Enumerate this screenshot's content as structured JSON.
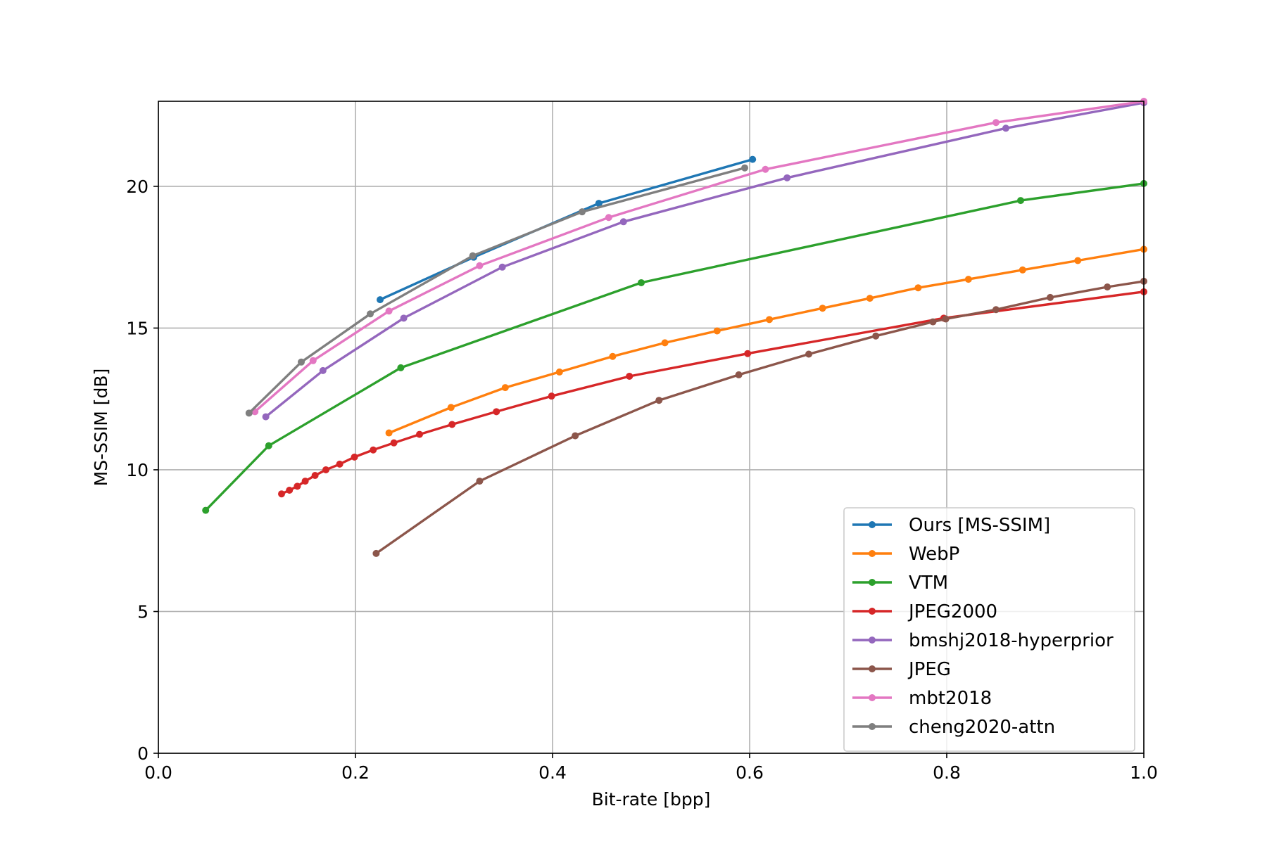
{
  "chart_data": {
    "type": "line",
    "title": "",
    "xlabel": "Bit-rate [bpp]",
    "ylabel": "MS-SSIM [dB]",
    "xlim": [
      0.0,
      1.0
    ],
    "ylim": [
      0,
      23
    ],
    "xticks": [
      0.0,
      0.2,
      0.4,
      0.6,
      0.8,
      1.0
    ],
    "xtick_labels": [
      "0.0",
      "0.2",
      "0.4",
      "0.6",
      "0.8",
      "1.0"
    ],
    "yticks": [
      0,
      5,
      10,
      15,
      20
    ],
    "ytick_labels": [
      "0",
      "5",
      "10",
      "15",
      "20"
    ],
    "grid": true,
    "legend_position": "bottom-right",
    "series": [
      {
        "name": "Ours [MS-SSIM]",
        "color": "#1f77b4",
        "x": [
          0.225,
          0.32,
          0.447,
          0.603
        ],
        "y": [
          16.0,
          17.5,
          19.4,
          20.95
        ]
      },
      {
        "name": "WebP",
        "color": "#ff7f0e",
        "x": [
          0.234,
          0.297,
          0.352,
          0.407,
          0.461,
          0.514,
          0.567,
          0.62,
          0.674,
          0.722,
          0.771,
          0.822,
          0.877,
          0.933,
          1.0
        ],
        "y": [
          11.3,
          12.2,
          12.9,
          13.45,
          14.0,
          14.48,
          14.9,
          15.3,
          15.7,
          16.05,
          16.42,
          16.72,
          17.05,
          17.38,
          17.78
        ]
      },
      {
        "name": "VTM",
        "color": "#2ca02c",
        "x": [
          0.048,
          0.112,
          0.246,
          0.49,
          0.875,
          1.0
        ],
        "y": [
          8.57,
          10.85,
          13.6,
          16.6,
          19.5,
          20.1
        ]
      },
      {
        "name": "JPEG2000",
        "color": "#d62728",
        "x": [
          0.125,
          0.133,
          0.141,
          0.149,
          0.159,
          0.17,
          0.184,
          0.199,
          0.218,
          0.239,
          0.265,
          0.298,
          0.343,
          0.399,
          0.478,
          0.598,
          0.797,
          1.0
        ],
        "y": [
          9.15,
          9.28,
          9.42,
          9.6,
          9.8,
          10.0,
          10.2,
          10.45,
          10.7,
          10.95,
          11.25,
          11.6,
          12.05,
          12.6,
          13.3,
          14.1,
          15.35,
          16.28
        ]
      },
      {
        "name": "bmshj2018-hyperprior",
        "color": "#9467bd",
        "x": [
          0.109,
          0.167,
          0.249,
          0.349,
          0.472,
          0.638,
          0.86,
          1.0
        ],
        "y": [
          11.87,
          13.5,
          15.35,
          17.15,
          18.75,
          20.3,
          22.05,
          22.95
        ]
      },
      {
        "name": "JPEG",
        "color": "#8c564b",
        "x": [
          0.221,
          0.326,
          0.423,
          0.508,
          0.589,
          0.66,
          0.728,
          0.786,
          0.799,
          0.85,
          0.905,
          0.963,
          1.0
        ],
        "y": [
          7.05,
          9.6,
          11.2,
          12.45,
          13.35,
          14.08,
          14.72,
          15.22,
          15.32,
          15.65,
          16.08,
          16.45,
          16.65
        ]
      },
      {
        "name": "mbt2018",
        "color": "#e377c2",
        "x": [
          0.098,
          0.157,
          0.234,
          0.326,
          0.457,
          0.616,
          0.85,
          1.0
        ],
        "y": [
          12.05,
          13.85,
          15.6,
          17.2,
          18.9,
          20.6,
          22.25,
          23.0
        ]
      },
      {
        "name": "cheng2020-attn",
        "color": "#7f7f7f",
        "x": [
          0.092,
          0.145,
          0.215,
          0.319,
          0.43,
          0.595
        ],
        "y": [
          12.0,
          13.8,
          15.5,
          17.55,
          19.1,
          20.65
        ]
      }
    ]
  }
}
